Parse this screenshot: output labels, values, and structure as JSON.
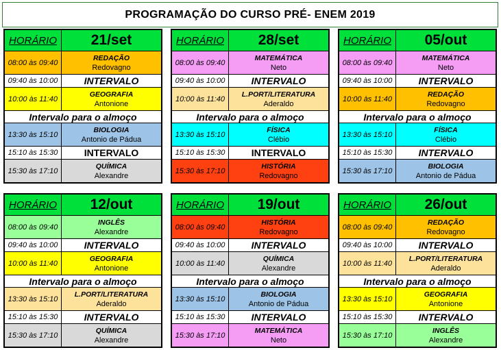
{
  "title": "PROGRAMAÇÃO DO CURSO PRÉ- ENEM 2019",
  "header_label": "HORÁRIO",
  "break_label": "INTERVALO",
  "lunch_label": "Intervalo para o almoço",
  "times": [
    "08:00 às 09:40",
    "09:40 às 10:00",
    "10:00 às 11:40",
    "13:30 às 15:10",
    "15:10 às 15:30",
    "15:30 às 17:10"
  ],
  "colors": {
    "header": "#00e03a",
    "REDAÇÃO": "#ffc000",
    "GEOGRAFIA": "#ffff00",
    "BIOLOGIA": "#9dc3e6",
    "QUÍMICA": "#d9d9d9",
    "MATEMÁTICA": "#f59df5",
    "L.PORT/LITERATURA": "#fde29c",
    "FÍSICA": "#00ffff",
    "HISTÓRIA": "#ff4010",
    "INGLÊS": "#99ff99"
  },
  "days": [
    {
      "date": "21/set",
      "classes": [
        {
          "subject": "REDAÇÃO",
          "teacher": "Redovagno"
        },
        {
          "subject": "GEOGRAFIA",
          "teacher": "Antonione"
        },
        {
          "subject": "BIOLOGIA",
          "teacher": "Antonio de Pádua"
        },
        {
          "subject": "QUÍMICA",
          "teacher": "Alexandre"
        }
      ]
    },
    {
      "date": "28/set",
      "classes": [
        {
          "subject": "MATEMÁTICA",
          "teacher": "Neto"
        },
        {
          "subject": "L.PORT/LITERATURA",
          "teacher": "Aderaldo"
        },
        {
          "subject": "FÍSICA",
          "teacher": "Clébio"
        },
        {
          "subject": "HISTÓRIA",
          "teacher": "Redovagno"
        }
      ]
    },
    {
      "date": "05/out",
      "classes": [
        {
          "subject": "MATEMÁTICA",
          "teacher": "Neto"
        },
        {
          "subject": "REDAÇÃO",
          "teacher": "Redovagno"
        },
        {
          "subject": "FÍSICA",
          "teacher": "Clébio"
        },
        {
          "subject": "BIOLOGIA",
          "teacher": "Antonio de Pádua"
        }
      ]
    },
    {
      "date": "12/out",
      "classes": [
        {
          "subject": "INGLÊS",
          "teacher": "Alexandre"
        },
        {
          "subject": "GEOGRAFIA",
          "teacher": "Antonione"
        },
        {
          "subject": "L.PORT/LITERATURA",
          "teacher": "Aderaldo"
        },
        {
          "subject": "QUÍMICA",
          "teacher": "Alexandre"
        }
      ]
    },
    {
      "date": "19/out",
      "classes": [
        {
          "subject": "HISTÓRIA",
          "teacher": "Redovagno"
        },
        {
          "subject": "QUÍMICA",
          "teacher": "Alexandre"
        },
        {
          "subject": "BIOLOGIA",
          "teacher": "Antonio de Pádua"
        },
        {
          "subject": "MATEMÁTICA",
          "teacher": "Neto"
        }
      ]
    },
    {
      "date": "26/out",
      "classes": [
        {
          "subject": "REDAÇÃO",
          "teacher": "Redovagno"
        },
        {
          "subject": "L.PORT/LITERATURA",
          "teacher": "Aderaldo"
        },
        {
          "subject": "GEOGRAFIA",
          "teacher": "Antonione"
        },
        {
          "subject": "INGLÊS",
          "teacher": "Alexandre"
        }
      ]
    }
  ]
}
